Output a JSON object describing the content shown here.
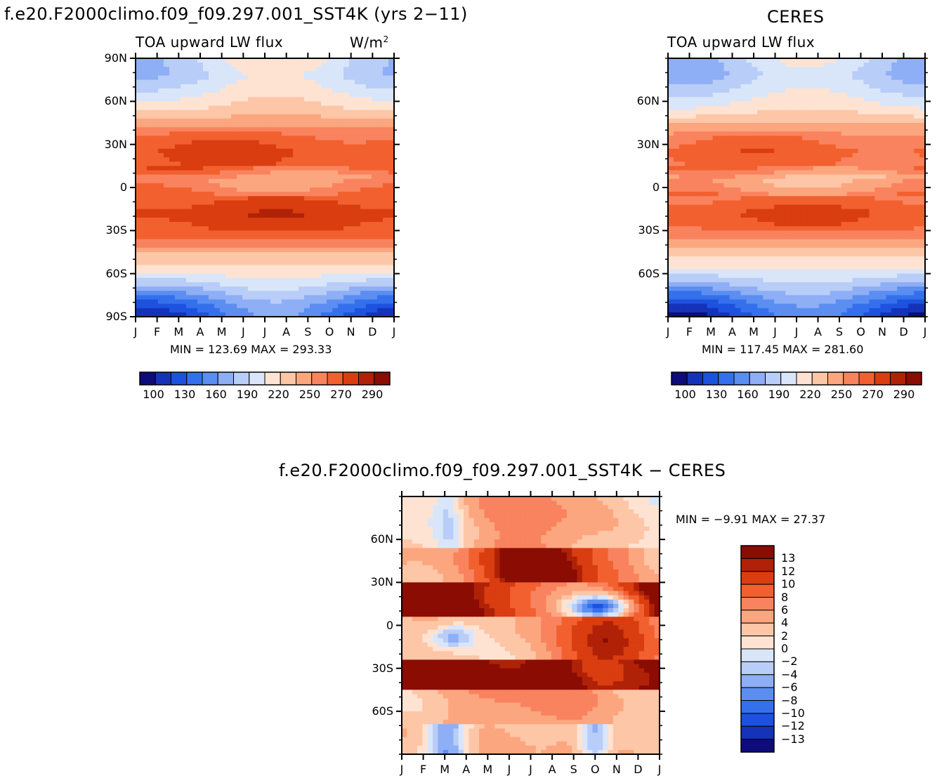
{
  "titles": {
    "main": "f.e20.F2000climo.f09_f09.297.001_SST4K (yrs 2−11)",
    "ceres": "CERES",
    "diff": "f.e20.F2000climo.f09_f09.297.001_SST4K − CERES"
  },
  "chart_data": [
    {
      "type": "heatmap",
      "title": "f.e20.F2000climo.f09_f09.297.001_SST4K (yrs 2−11)",
      "subtitle_left": "TOA upward LW flux",
      "units": "W/m",
      "units_sup": "2",
      "x_ticks": [
        "J",
        "F",
        "M",
        "A",
        "M",
        "J",
        "J",
        "A",
        "S",
        "O",
        "N",
        "D",
        "J"
      ],
      "y_ticks": [
        "90N",
        "60N",
        "30N",
        "0",
        "30S",
        "60S",
        "90S"
      ],
      "minmax": "MIN = 123.69 MAX = 293.33",
      "colorbar_labels": [
        "100",
        "130",
        "160",
        "190",
        "220",
        "250",
        "270",
        "290"
      ],
      "colorbar_colors": [
        "#0d0c7a",
        "#1433b8",
        "#1d52df",
        "#3570ec",
        "#5b8ef0",
        "#8eaef5",
        "#b8cdf7",
        "#d9e6fa",
        "#fee3d2",
        "#fdc6a6",
        "#fca67f",
        "#f9835e",
        "#f2602f",
        "#d93d10",
        "#b02207",
        "#8a0c02"
      ],
      "contour_bands": [
        {
          "lat": 90,
          "level": 7
        },
        {
          "lat": 75,
          "level": 7
        },
        {
          "lat": 60,
          "level": 8
        },
        {
          "lat": 45,
          "level": 10
        },
        {
          "lat": 30,
          "level": 12
        },
        {
          "lat": 15,
          "level": 13
        },
        {
          "lat": 0,
          "level": 11
        },
        {
          "lat": -15,
          "level": 14
        },
        {
          "lat": -30,
          "level": 13
        },
        {
          "lat": -45,
          "level": 10
        },
        {
          "lat": -60,
          "level": 8
        },
        {
          "lat": -75,
          "level": 5
        },
        {
          "lat": -90,
          "level": 3
        }
      ]
    },
    {
      "type": "heatmap",
      "title": "CERES",
      "subtitle_left": "TOA upward LW flux",
      "x_ticks": [
        "J",
        "F",
        "M",
        "A",
        "M",
        "J",
        "J",
        "A",
        "S",
        "O",
        "N",
        "D",
        "J"
      ],
      "y_ticks": [
        "60N",
        "30N",
        "0",
        "30S",
        "60S"
      ],
      "minmax": "MIN = 117.45 MAX = 281.60",
      "colorbar_labels": [
        "100",
        "130",
        "160",
        "190",
        "220",
        "250",
        "270",
        "290"
      ],
      "colorbar_colors": [
        "#0d0c7a",
        "#1433b8",
        "#1d52df",
        "#3570ec",
        "#5b8ef0",
        "#8eaef5",
        "#b8cdf7",
        "#d9e6fa",
        "#fee3d2",
        "#fdc6a6",
        "#fca67f",
        "#f9835e",
        "#f2602f",
        "#d93d10",
        "#b02207",
        "#8a0c02"
      ]
    },
    {
      "type": "heatmap",
      "title": "f.e20.F2000climo.f09_f09.297.001_SST4K − CERES",
      "x_ticks": [
        "J",
        "F",
        "M",
        "A",
        "M",
        "J",
        "J",
        "A",
        "S",
        "O",
        "N",
        "D",
        "J"
      ],
      "y_ticks": [
        "60N",
        "30N",
        "0",
        "30S",
        "60S"
      ],
      "minmax": "MIN =   −9.91 MAX =   27.37",
      "colorbar_labels": [
        "13",
        "12",
        "10",
        "8",
        "6",
        "4",
        "2",
        "0",
        "−2",
        "−4",
        "−6",
        "−8",
        "−10",
        "−12",
        "−13"
      ],
      "colorbar_colors": [
        "#8a0c02",
        "#b02207",
        "#d93d10",
        "#f2602f",
        "#f9835e",
        "#fca67f",
        "#fdc6a6",
        "#fee3d2",
        "#d9e6fa",
        "#b8cdf7",
        "#8eaef5",
        "#5b8ef0",
        "#3570ec",
        "#1d52df",
        "#1433b8",
        "#0d0c7a"
      ]
    }
  ]
}
